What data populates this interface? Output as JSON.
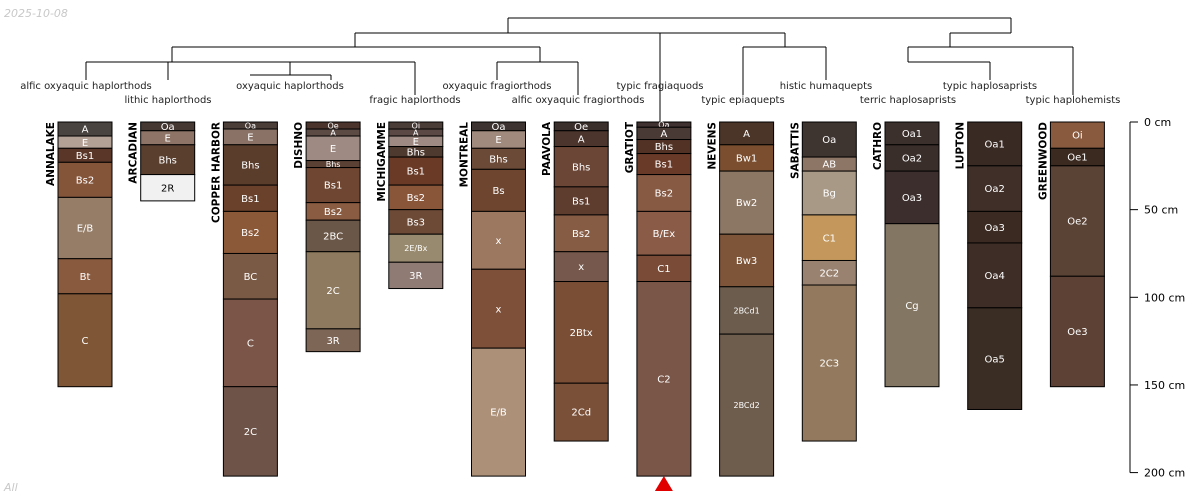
{
  "date_stamp": "2025-10-08",
  "corner_label": "All",
  "depth_axis": {
    "unit": "cm",
    "min": 0,
    "max": 200,
    "ticks": [
      {
        "value": 0,
        "label": "0 cm"
      },
      {
        "value": 50,
        "label": "50 cm"
      },
      {
        "value": 100,
        "label": "100 cm"
      },
      {
        "value": 150,
        "label": "150 cm"
      },
      {
        "value": 200,
        "label": "200 cm"
      }
    ]
  },
  "taxa": [
    {
      "label": "alfic oxyaquic haplorthods",
      "row": 0
    },
    {
      "label": "lithic haplorthods",
      "row": 1
    },
    {
      "label": "oxyaquic haplorthods",
      "row": 0
    },
    {
      "label": "fragic haplorthods",
      "row": 1
    },
    {
      "label": "oxyaquic fragiorthods",
      "row": 0
    },
    {
      "label": "alfic oxyaquic fragiorthods",
      "row": 1
    },
    {
      "label": "typic fragiaquods",
      "row": 0
    },
    {
      "label": "typic epiaquepts",
      "row": 1
    },
    {
      "label": "histic humaquepts",
      "row": 0
    },
    {
      "label": "terric haplosaprists",
      "row": 1
    },
    {
      "label": "typic haplosaprists",
      "row": 0
    },
    {
      "label": "typic haplohemists",
      "row": 1
    }
  ],
  "profiles": [
    {
      "name": "ANNALAKE",
      "horizons": [
        {
          "name": "A",
          "top": 0,
          "bottom": 8,
          "color": "#4a4440"
        },
        {
          "name": "E",
          "top": 8,
          "bottom": 15,
          "color": "#b4a196"
        },
        {
          "name": "Bs1",
          "top": 15,
          "bottom": 23,
          "color": "#5a3628"
        },
        {
          "name": "Bs2",
          "top": 23,
          "bottom": 43,
          "color": "#85553a"
        },
        {
          "name": "E/B",
          "top": 43,
          "bottom": 78,
          "color": "#957d68"
        },
        {
          "name": "Bt",
          "top": 78,
          "bottom": 98,
          "color": "#8a5a3e"
        },
        {
          "name": "C",
          "top": 98,
          "bottom": 151,
          "color": "#7f5636"
        }
      ]
    },
    {
      "name": "ARCADIAN",
      "horizons": [
        {
          "name": "Oa",
          "top": 0,
          "bottom": 5,
          "color": "#453833"
        },
        {
          "name": "E",
          "top": 5,
          "bottom": 13,
          "color": "#8e7467"
        },
        {
          "name": "Bhs",
          "top": 13,
          "bottom": 30,
          "color": "#5a3f2f"
        },
        {
          "name": "2R",
          "top": 30,
          "bottom": 45,
          "color": "#f1f1f1"
        }
      ]
    },
    {
      "name": "COPPER HARBOR",
      "horizons": [
        {
          "name": "Oa",
          "top": 0,
          "bottom": 4,
          "color": "#4b3d37"
        },
        {
          "name": "E",
          "top": 4,
          "bottom": 13,
          "color": "#8a7266"
        },
        {
          "name": "Bhs",
          "top": 13,
          "bottom": 36,
          "color": "#5b3d2c"
        },
        {
          "name": "Bs1",
          "top": 36,
          "bottom": 51,
          "color": "#6a422c"
        },
        {
          "name": "Bs2",
          "top": 51,
          "bottom": 75,
          "color": "#8b5838"
        },
        {
          "name": "BC",
          "top": 75,
          "bottom": 101,
          "color": "#7a5a45"
        },
        {
          "name": "C",
          "top": 101,
          "bottom": 151,
          "color": "#7a5548"
        },
        {
          "name": "2C",
          "top": 151,
          "bottom": 202,
          "color": "#6e5348"
        }
      ]
    },
    {
      "name": "DISHNO",
      "horizons": [
        {
          "name": "Oe",
          "top": 0,
          "bottom": 4,
          "color": "#4a342c"
        },
        {
          "name": "A",
          "top": 4,
          "bottom": 8,
          "color": "#5c4a45"
        },
        {
          "name": "E",
          "top": 8,
          "bottom": 22,
          "color": "#9e8a82"
        },
        {
          "name": "Bhs",
          "top": 22,
          "bottom": 26,
          "color": "#5b4034"
        },
        {
          "name": "Bs1",
          "top": 26,
          "bottom": 46,
          "color": "#6e4631"
        },
        {
          "name": "Bs2",
          "top": 46,
          "bottom": 56,
          "color": "#8a5c42"
        },
        {
          "name": "2BC",
          "top": 56,
          "bottom": 74,
          "color": "#6b5747"
        },
        {
          "name": "2C",
          "top": 74,
          "bottom": 118,
          "color": "#8e7a5e"
        },
        {
          "name": "3R",
          "top": 118,
          "bottom": 131,
          "color": "#7e6656"
        }
      ]
    },
    {
      "name": "MICHIGAMME",
      "horizons": [
        {
          "name": "Oi",
          "top": 0,
          "bottom": 4,
          "color": "#4a3c36"
        },
        {
          "name": "A",
          "top": 4,
          "bottom": 8,
          "color": "#5a4944"
        },
        {
          "name": "E",
          "top": 8,
          "bottom": 14,
          "color": "#9e8a82"
        },
        {
          "name": "Bhs",
          "top": 14,
          "bottom": 20,
          "color": "#4e3a2e"
        },
        {
          "name": "Bs1",
          "top": 20,
          "bottom": 36,
          "color": "#6a3a26"
        },
        {
          "name": "Bs2",
          "top": 36,
          "bottom": 50,
          "color": "#8a563a"
        },
        {
          "name": "Bs3",
          "top": 50,
          "bottom": 64,
          "color": "#6d4a36"
        },
        {
          "name": "2E/Bx",
          "top": 64,
          "bottom": 80,
          "color": "#988a6e"
        },
        {
          "name": "3R",
          "top": 80,
          "bottom": 95,
          "color": "#907b74"
        }
      ]
    },
    {
      "name": "MONTREAL",
      "horizons": [
        {
          "name": "Oa",
          "top": 0,
          "bottom": 5,
          "color": "#3d3330"
        },
        {
          "name": "E",
          "top": 5,
          "bottom": 15,
          "color": "#a08a7e"
        },
        {
          "name": "Bhs",
          "top": 15,
          "bottom": 27,
          "color": "#6b4a37"
        },
        {
          "name": "Bs",
          "top": 27,
          "bottom": 51,
          "color": "#6e4630"
        },
        {
          "name": "x",
          "top": 51,
          "bottom": 84,
          "color": "#9c7860"
        },
        {
          "name": "x",
          "top": 84,
          "bottom": 129,
          "color": "#7e5039"
        },
        {
          "name": "E/B",
          "top": 129,
          "bottom": 202,
          "color": "#ad9078"
        }
      ]
    },
    {
      "name": "PAAVOLA",
      "horizons": [
        {
          "name": "Oe",
          "top": 0,
          "bottom": 5,
          "color": "#3b2f2b"
        },
        {
          "name": "A",
          "top": 5,
          "bottom": 14,
          "color": "#4b352c"
        },
        {
          "name": "Bhs",
          "top": 14,
          "bottom": 37,
          "color": "#6b4535"
        },
        {
          "name": "Bs1",
          "top": 37,
          "bottom": 53,
          "color": "#5e3c2e"
        },
        {
          "name": "Bs2",
          "top": 53,
          "bottom": 74,
          "color": "#875c44"
        },
        {
          "name": "x",
          "top": 74,
          "bottom": 91,
          "color": "#76594c"
        },
        {
          "name": "2Btx",
          "top": 91,
          "bottom": 149,
          "color": "#7a4e35"
        },
        {
          "name": "2Cd",
          "top": 149,
          "bottom": 182,
          "color": "#7b5038"
        }
      ]
    },
    {
      "name": "GRATIOT",
      "horizons": [
        {
          "name": "Oa",
          "top": 0,
          "bottom": 3,
          "color": "#403230"
        },
        {
          "name": "A",
          "top": 3,
          "bottom": 10,
          "color": "#4a3a36"
        },
        {
          "name": "Bhs",
          "top": 10,
          "bottom": 18,
          "color": "#523225"
        },
        {
          "name": "Bs1",
          "top": 18,
          "bottom": 30,
          "color": "#6a3a28"
        },
        {
          "name": "Bs2",
          "top": 30,
          "bottom": 51,
          "color": "#875a44"
        },
        {
          "name": "B/Ex",
          "top": 51,
          "bottom": 76,
          "color": "#8a5c48"
        },
        {
          "name": "C1",
          "top": 76,
          "bottom": 91,
          "color": "#7a4c38"
        },
        {
          "name": "C2",
          "top": 91,
          "bottom": 202,
          "color": "#7a5648"
        }
      ]
    },
    {
      "name": "NEVENS",
      "horizons": [
        {
          "name": "A",
          "top": 0,
          "bottom": 13,
          "color": "#4a3528"
        },
        {
          "name": "Bw1",
          "top": 13,
          "bottom": 28,
          "color": "#7a4e2e"
        },
        {
          "name": "Bw2",
          "top": 28,
          "bottom": 64,
          "color": "#8c7664"
        },
        {
          "name": "Bw3",
          "top": 64,
          "bottom": 94,
          "color": "#7e5538"
        },
        {
          "name": "2BCd1",
          "top": 94,
          "bottom": 121,
          "color": "#6b5c4d"
        },
        {
          "name": "2BCd2",
          "top": 121,
          "bottom": 202,
          "color": "#6e5c4c"
        }
      ]
    },
    {
      "name": "SABATTIS",
      "horizons": [
        {
          "name": "Oa",
          "top": 0,
          "bottom": 20,
          "color": "#3e3430"
        },
        {
          "name": "AB",
          "top": 20,
          "bottom": 28,
          "color": "#8e7666"
        },
        {
          "name": "Bg",
          "top": 28,
          "bottom": 53,
          "color": "#a89886"
        },
        {
          "name": "C1",
          "top": 53,
          "bottom": 79,
          "color": "#c4985c"
        },
        {
          "name": "2C2",
          "top": 79,
          "bottom": 93,
          "color": "#9a8270"
        },
        {
          "name": "2C3",
          "top": 93,
          "bottom": 182,
          "color": "#937a5e"
        }
      ]
    },
    {
      "name": "CATHRO",
      "horizons": [
        {
          "name": "Oa1",
          "top": 0,
          "bottom": 13,
          "color": "#3c302d"
        },
        {
          "name": "Oa2",
          "top": 13,
          "bottom": 28,
          "color": "#3a2e2b"
        },
        {
          "name": "Oa3",
          "top": 28,
          "bottom": 58,
          "color": "#3c2e2c"
        },
        {
          "name": "Cg",
          "top": 58,
          "bottom": 151,
          "color": "#837662"
        }
      ]
    },
    {
      "name": "LUPTON",
      "horizons": [
        {
          "name": "Oa1",
          "top": 0,
          "bottom": 25,
          "color": "#3a2a24"
        },
        {
          "name": "Oa2",
          "top": 25,
          "bottom": 51,
          "color": "#3f2f28"
        },
        {
          "name": "Oa3",
          "top": 51,
          "bottom": 69,
          "color": "#3a2a22"
        },
        {
          "name": "Oa4",
          "top": 69,
          "bottom": 106,
          "color": "#3e2d26"
        },
        {
          "name": "Oa5",
          "top": 106,
          "bottom": 164,
          "color": "#3a2d24"
        }
      ]
    },
    {
      "name": "GREENWOOD",
      "horizons": [
        {
          "name": "Oi",
          "top": 0,
          "bottom": 15,
          "color": "#8a5a3e"
        },
        {
          "name": "Oe1",
          "top": 15,
          "bottom": 25,
          "color": "#3b2a20"
        },
        {
          "name": "Oe2",
          "top": 25,
          "bottom": 88,
          "color": "#5a4235"
        },
        {
          "name": "Oe3",
          "top": 88,
          "bottom": 151,
          "color": "#5c4134"
        }
      ]
    }
  ],
  "marker": {
    "profile": "GRATIOT",
    "shape": "triangle",
    "color": "#e00000"
  }
}
